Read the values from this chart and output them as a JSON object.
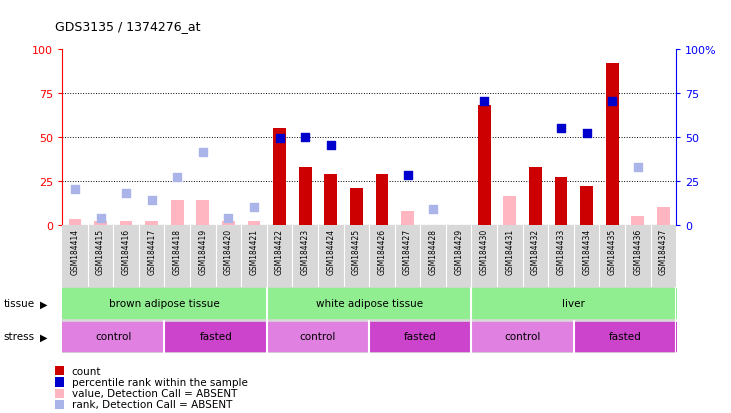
{
  "title": "GDS3135 / 1374276_at",
  "samples": [
    "GSM184414",
    "GSM184415",
    "GSM184416",
    "GSM184417",
    "GSM184418",
    "GSM184419",
    "GSM184420",
    "GSM184421",
    "GSM184422",
    "GSM184423",
    "GSM184424",
    "GSM184425",
    "GSM184426",
    "GSM184427",
    "GSM184428",
    "GSM184429",
    "GSM184430",
    "GSM184431",
    "GSM184432",
    "GSM184433",
    "GSM184434",
    "GSM184435",
    "GSM184436",
    "GSM184437"
  ],
  "count": [
    null,
    null,
    null,
    null,
    null,
    null,
    null,
    null,
    55,
    33,
    29,
    21,
    29,
    null,
    null,
    null,
    68,
    null,
    33,
    27,
    22,
    92,
    null,
    null
  ],
  "rank": [
    null,
    null,
    null,
    null,
    null,
    null,
    null,
    null,
    49,
    50,
    45,
    null,
    null,
    28,
    null,
    null,
    70,
    null,
    null,
    55,
    52,
    70,
    null,
    null
  ],
  "count_absent": [
    3,
    2,
    2,
    2,
    14,
    14,
    2,
    2,
    null,
    null,
    null,
    null,
    null,
    8,
    null,
    null,
    null,
    16,
    null,
    null,
    null,
    null,
    5,
    10
  ],
  "rank_absent": [
    20,
    4,
    18,
    14,
    27,
    41,
    4,
    10,
    null,
    null,
    null,
    null,
    null,
    null,
    9,
    null,
    null,
    null,
    null,
    null,
    null,
    null,
    33,
    null
  ],
  "ylim": [
    0,
    100
  ],
  "bar_color_present": "#cc0000",
  "bar_color_absent": "#ffb6c1",
  "dot_color_present": "#0000cc",
  "dot_color_absent": "#aab4e8",
  "tissue_groups": [
    {
      "label": "brown adipose tissue",
      "start": 0,
      "end": 8,
      "color": "#90ee90"
    },
    {
      "label": "white adipose tissue",
      "start": 8,
      "end": 16,
      "color": "#90ee90"
    },
    {
      "label": "liver",
      "start": 16,
      "end": 24,
      "color": "#90ee90"
    }
  ],
  "stress_groups": [
    {
      "label": "control",
      "start": 0,
      "end": 4,
      "color": "#e080e0"
    },
    {
      "label": "fasted",
      "start": 4,
      "end": 8,
      "color": "#cc44cc"
    },
    {
      "label": "control",
      "start": 8,
      "end": 12,
      "color": "#e080e0"
    },
    {
      "label": "fasted",
      "start": 12,
      "end": 16,
      "color": "#cc44cc"
    },
    {
      "label": "control",
      "start": 16,
      "end": 20,
      "color": "#e080e0"
    },
    {
      "label": "fasted",
      "start": 20,
      "end": 24,
      "color": "#cc44cc"
    }
  ],
  "legend_items": [
    {
      "color": "#cc0000",
      "label": "count"
    },
    {
      "color": "#0000cc",
      "label": "percentile rank within the sample"
    },
    {
      "color": "#ffb6c1",
      "label": "value, Detection Call = ABSENT"
    },
    {
      "color": "#aab4e8",
      "label": "rank, Detection Call = ABSENT"
    }
  ]
}
